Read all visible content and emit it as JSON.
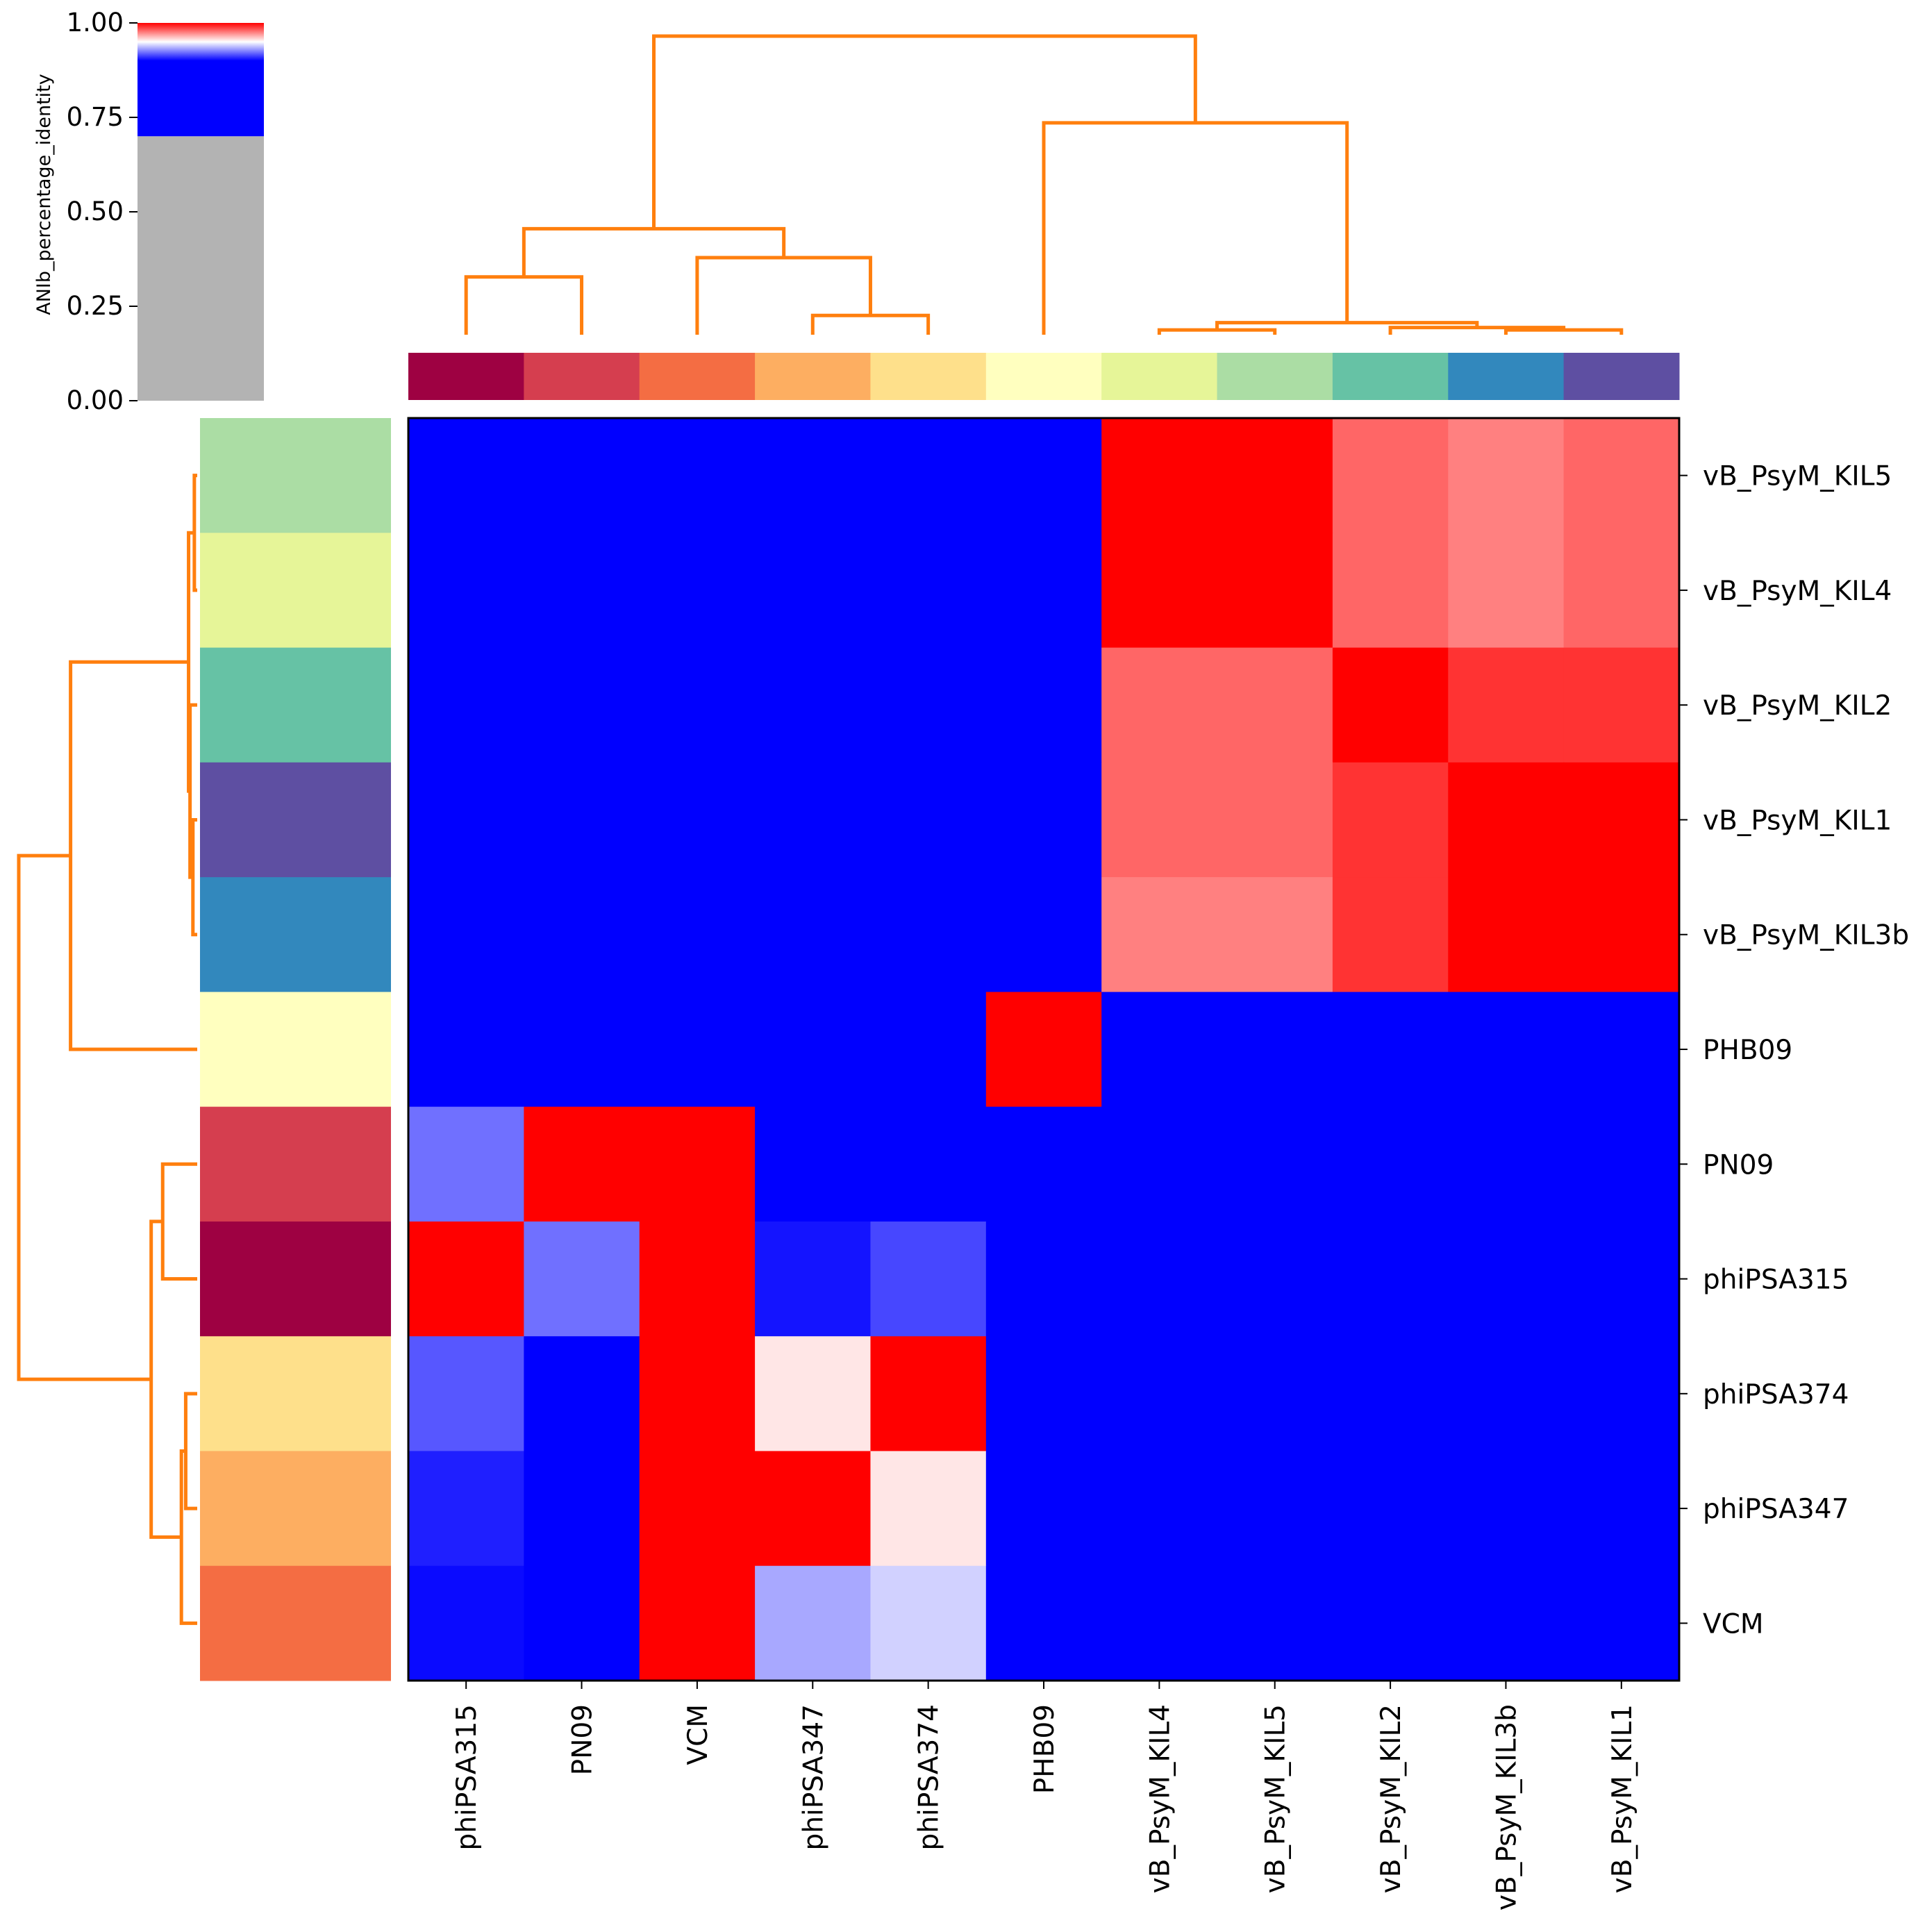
{
  "chart_data": {
    "type": "heatmap",
    "title": "",
    "metric": "ANIb_percentage_identity",
    "colorbar": {
      "label": "ANIb_percentage_identity",
      "ticks": [
        "0.00",
        "0.25",
        "0.50",
        "0.75",
        "1.00"
      ],
      "range": [
        0,
        1
      ],
      "gray_below": 0.7,
      "color_low": "#0000ff",
      "color_mid": "#ffffff",
      "color_high": "#ff0000",
      "gray_color": "#b3b3b3",
      "blue_until": 0.9,
      "white_at": 0.95
    },
    "genomes": [
      {
        "name": "phiPSA315",
        "color": "#9e0142"
      },
      {
        "name": "PN09",
        "color": "#d53e4f"
      },
      {
        "name": "VCM",
        "color": "#f46d43"
      },
      {
        "name": "phiPSA347",
        "color": "#fdae61"
      },
      {
        "name": "phiPSA374",
        "color": "#fee08b"
      },
      {
        "name": "PHB09",
        "color": "#ffffbf"
      },
      {
        "name": "vB_PsyM_KIL4",
        "color": "#e6f598"
      },
      {
        "name": "vB_PsyM_KIL5",
        "color": "#abdda4"
      },
      {
        "name": "vB_PsyM_KIL2",
        "color": "#66c2a5"
      },
      {
        "name": "vB_PsyM_KIL3b",
        "color": "#3288bd"
      },
      {
        "name": "vB_PsyM_KIL1",
        "color": "#5e4fa2"
      }
    ],
    "columns": [
      "phiPSA315",
      "PN09",
      "VCM",
      "phiPSA347",
      "phiPSA374",
      "PHB09",
      "vB_PsyM_KIL4",
      "vB_PsyM_KIL5",
      "vB_PsyM_KIL2",
      "vB_PsyM_KIL3b",
      "vB_PsyM_KIL1"
    ],
    "rows": [
      "vB_PsyM_KIL5",
      "vB_PsyM_KIL4",
      "vB_PsyM_KIL2",
      "vB_PsyM_KIL1",
      "vB_PsyM_KIL3b",
      "PHB09",
      "PN09",
      "phiPSA315",
      "phiPSA374",
      "phiPSA347",
      "VCM"
    ],
    "values": [
      [
        0.7,
        0.7,
        0.7,
        0.7,
        0.7,
        0.7,
        1.0,
        1.0,
        0.98,
        0.975,
        0.98
      ],
      [
        0.7,
        0.7,
        0.7,
        0.7,
        0.7,
        0.7,
        1.0,
        1.0,
        0.98,
        0.975,
        0.98
      ],
      [
        0.7,
        0.7,
        0.7,
        0.7,
        0.7,
        0.7,
        0.98,
        0.98,
        1.0,
        0.99,
        0.99
      ],
      [
        0.7,
        0.7,
        0.7,
        0.7,
        0.7,
        0.7,
        0.98,
        0.98,
        0.99,
        1.0,
        1.0
      ],
      [
        0.7,
        0.7,
        0.7,
        0.7,
        0.7,
        0.7,
        0.975,
        0.975,
        0.99,
        1.0,
        1.0
      ],
      [
        0.7,
        0.7,
        0.7,
        0.7,
        0.7,
        1.0,
        0.7,
        0.7,
        0.7,
        0.7,
        0.7
      ],
      [
        0.922,
        1.0,
        1.0,
        0.7,
        0.7,
        0.7,
        0.7,
        0.7,
        0.7,
        0.7,
        0.7
      ],
      [
        1.0,
        0.922,
        1.0,
        0.904,
        0.914,
        0.7,
        0.7,
        0.7,
        0.7,
        0.7,
        0.7
      ],
      [
        0.917,
        0.7,
        1.0,
        0.955,
        1.0,
        0.7,
        0.7,
        0.7,
        0.7,
        0.7,
        0.7
      ],
      [
        0.906,
        0.7,
        1.0,
        1.0,
        0.955,
        0.7,
        0.7,
        0.7,
        0.7,
        0.7,
        0.7
      ],
      [
        0.902,
        0.7,
        1.0,
        0.933,
        0.941,
        0.7,
        0.7,
        0.7,
        0.7,
        0.7,
        0.7
      ]
    ],
    "dendrogram_color": "#ff7f0e",
    "col_dendrogram": {
      "leaf_order": [
        "phiPSA315",
        "PN09",
        "VCM",
        "phiPSA347",
        "phiPSA374",
        "PHB09",
        "vB_PsyM_KIL4",
        "vB_PsyM_KIL5",
        "vB_PsyM_KIL2",
        "vB_PsyM_KIL3b",
        "vB_PsyM_KIL1"
      ],
      "merges": [
        [
          9,
          10,
          0.01
        ],
        [
          8,
          11,
          0.015
        ],
        [
          6,
          7,
          0.01
        ],
        [
          13,
          12,
          0.025
        ],
        [
          3,
          4,
          0.04
        ],
        [
          0,
          1,
          0.12
        ],
        [
          2,
          15,
          0.16
        ],
        [
          16,
          17,
          0.22
        ],
        [
          5,
          14,
          0.44
        ],
        [
          18,
          19,
          0.62
        ]
      ]
    },
    "row_dendrogram": {
      "leaf_order": [
        "vB_PsyM_KIL5",
        "vB_PsyM_KIL4",
        "vB_PsyM_KIL2",
        "vB_PsyM_KIL1",
        "vB_PsyM_KIL3b",
        "PHB09",
        "PN09",
        "phiPSA315",
        "phiPSA374",
        "phiPSA347",
        "VCM"
      ],
      "merges": [
        [
          0,
          1,
          0.01
        ],
        [
          3,
          4,
          0.015
        ],
        [
          2,
          12,
          0.025
        ],
        [
          8,
          9,
          0.04
        ],
        [
          11,
          13,
          0.03
        ],
        [
          10,
          14,
          0.055
        ],
        [
          6,
          7,
          0.12
        ],
        [
          17,
          16,
          0.16
        ],
        [
          15,
          5,
          0.44
        ],
        [
          18,
          19,
          0.62
        ]
      ]
    }
  }
}
